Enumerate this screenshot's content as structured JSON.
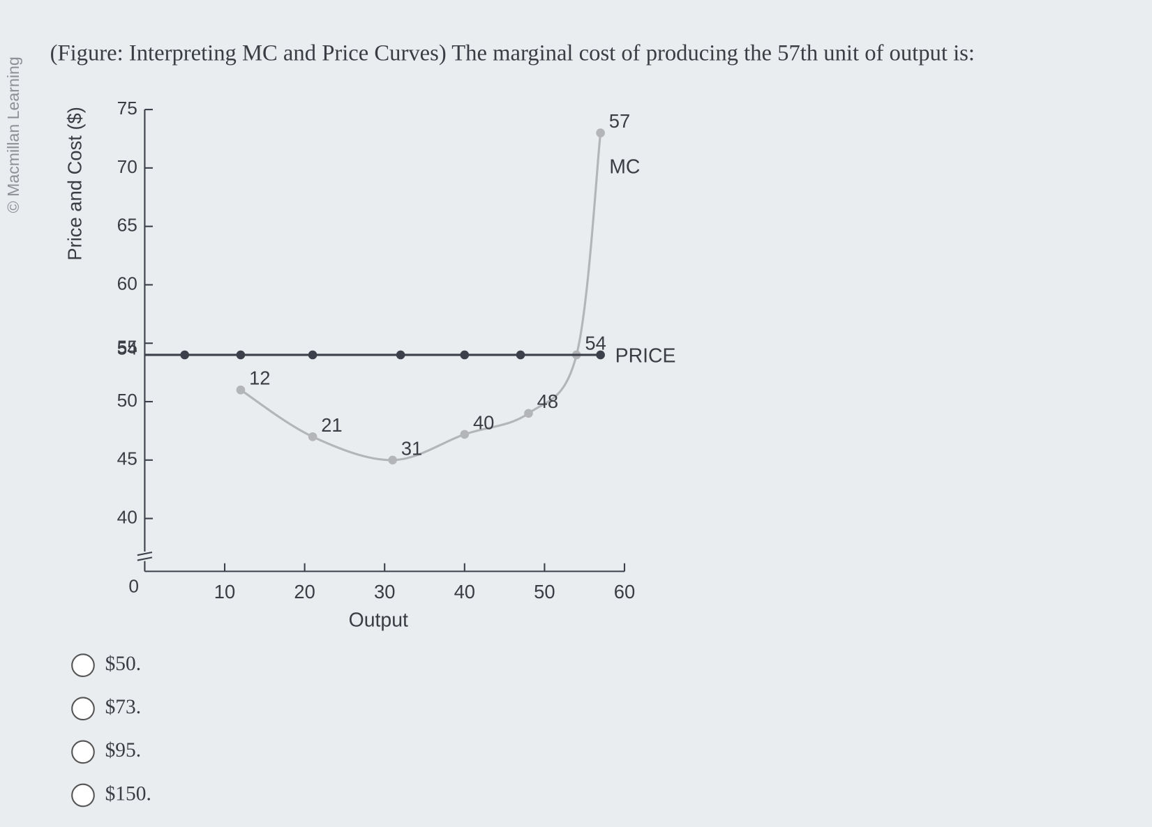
{
  "watermark": "© Macmillan Learning",
  "question": "(Figure: Interpreting MC and Price Curves) The marginal cost of producing the 57th unit of output is:",
  "chart_data": {
    "type": "line",
    "x_label": "Output",
    "y_label": "Price and Cost ($)",
    "series": [
      {
        "name": "MC",
        "color": "#b3b5b8",
        "x": [
          12,
          21,
          31,
          40,
          48,
          54,
          57
        ],
        "values": [
          51,
          47,
          45,
          47.2,
          49,
          54,
          73
        ]
      },
      {
        "name": "PRICE",
        "color": "#3b404a",
        "x": [
          5,
          12,
          21,
          32,
          40,
          47,
          57
        ],
        "values": [
          54,
          54,
          54,
          54,
          54,
          54,
          54
        ]
      }
    ],
    "xlim": [
      0,
      60
    ],
    "xticks": [
      0,
      10,
      20,
      30,
      40,
      50,
      60
    ],
    "ylim": [
      0,
      75
    ],
    "yticks": [
      0,
      40,
      45,
      50,
      54,
      55,
      60,
      65,
      70,
      75
    ],
    "y_axis_break": true,
    "grid": false
  },
  "options": [
    "$50.",
    "$73.",
    "$95.",
    "$150."
  ]
}
